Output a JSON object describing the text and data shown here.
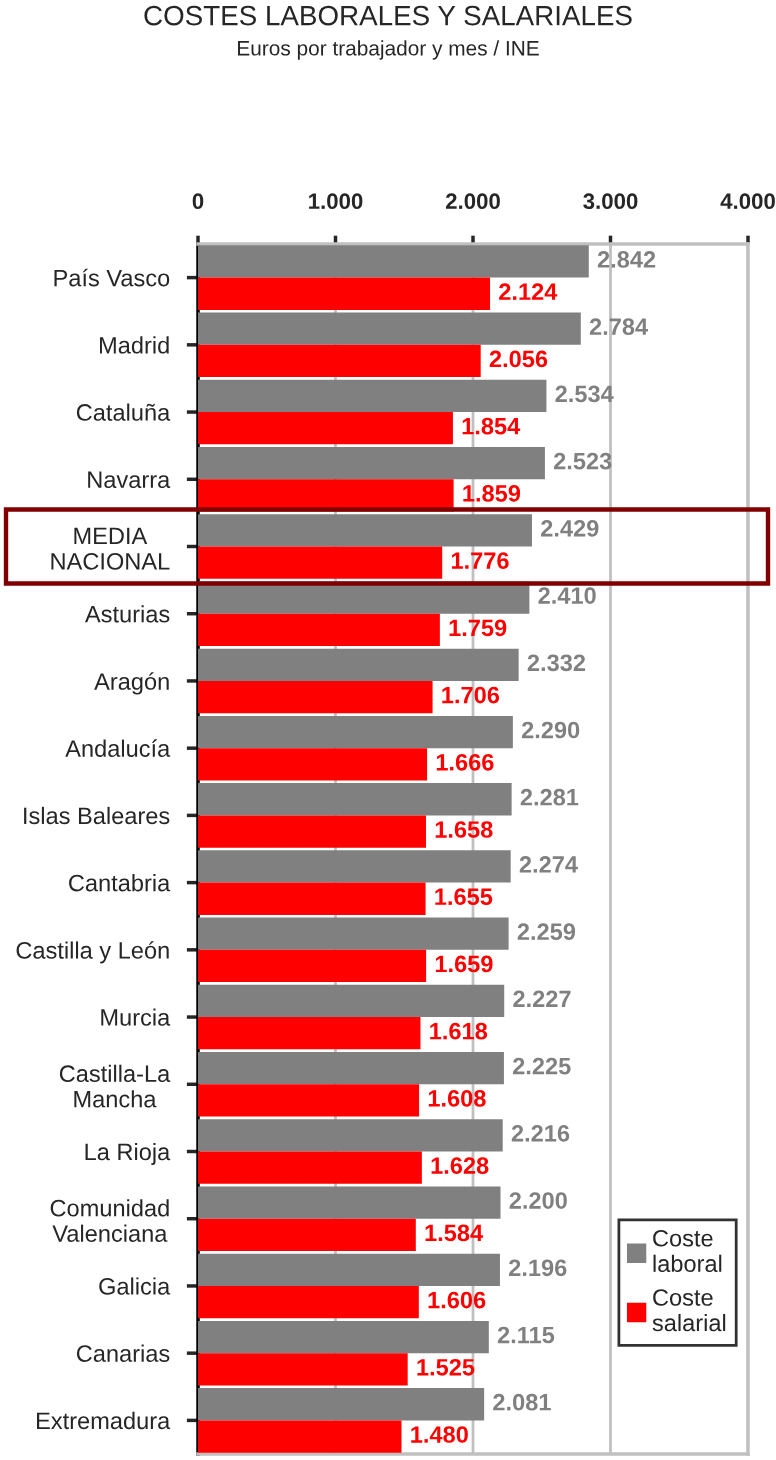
{
  "chart_data": {
    "type": "bar",
    "orientation": "horizontal",
    "title": "COSTES LABORALES Y SALARIALES",
    "subtitle": "Euros por trabajador y mes / INE",
    "categories": [
      "País Vasco",
      "Madrid",
      "Cataluña",
      "Navarra",
      "MEDIA\nNACIONAL",
      "Asturias",
      "Aragón",
      "Andalucía",
      "Islas Baleares",
      "Cantabria",
      "Castilla y León",
      "Murcia",
      "Castilla-La\nMancha",
      "La Rioja",
      "Comunidad\nValenciana",
      "Galicia",
      "Canarias",
      "Extremadura"
    ],
    "series": [
      {
        "name": "Coste\nlaboral",
        "color": "#808080",
        "values": [
          2842,
          2784,
          2534,
          2523,
          2429,
          2410,
          2332,
          2290,
          2281,
          2274,
          2259,
          2227,
          2225,
          2216,
          2200,
          2196,
          2115,
          2081
        ],
        "value_labels": [
          "2.842",
          "2.784",
          "2.534",
          "2.523",
          "2.429",
          "2.410",
          "2.332",
          "2.290",
          "2.281",
          "2.274",
          "2.259",
          "2.227",
          "2.225",
          "2.216",
          "2.200",
          "2.196",
          "2.115",
          "2.081"
        ]
      },
      {
        "name": "Coste\nsalarial",
        "color": "#ff0000",
        "values": [
          2124,
          2056,
          1854,
          1859,
          1776,
          1759,
          1706,
          1666,
          1658,
          1655,
          1659,
          1618,
          1608,
          1628,
          1584,
          1606,
          1525,
          1480
        ],
        "value_labels": [
          "2.124",
          "2.056",
          "1.854",
          "1.859",
          "1.776",
          "1.759",
          "1.706",
          "1.666",
          "1.658",
          "1.655",
          "1.659",
          "1.618",
          "1.608",
          "1.628",
          "1.584",
          "1.606",
          "1.525",
          "1.480"
        ]
      }
    ],
    "xlim": [
      0,
      4000
    ],
    "xticks": [
      0,
      {
        "value": 1000,
        "label": "1.000"
      },
      {
        "value": 2000,
        "label": "2.000"
      },
      {
        "value": 3000,
        "label": "3.000"
      },
      {
        "value": 4000,
        "label": "4.000"
      }
    ],
    "grid": "x",
    "legend": "bottom right"
  }
}
